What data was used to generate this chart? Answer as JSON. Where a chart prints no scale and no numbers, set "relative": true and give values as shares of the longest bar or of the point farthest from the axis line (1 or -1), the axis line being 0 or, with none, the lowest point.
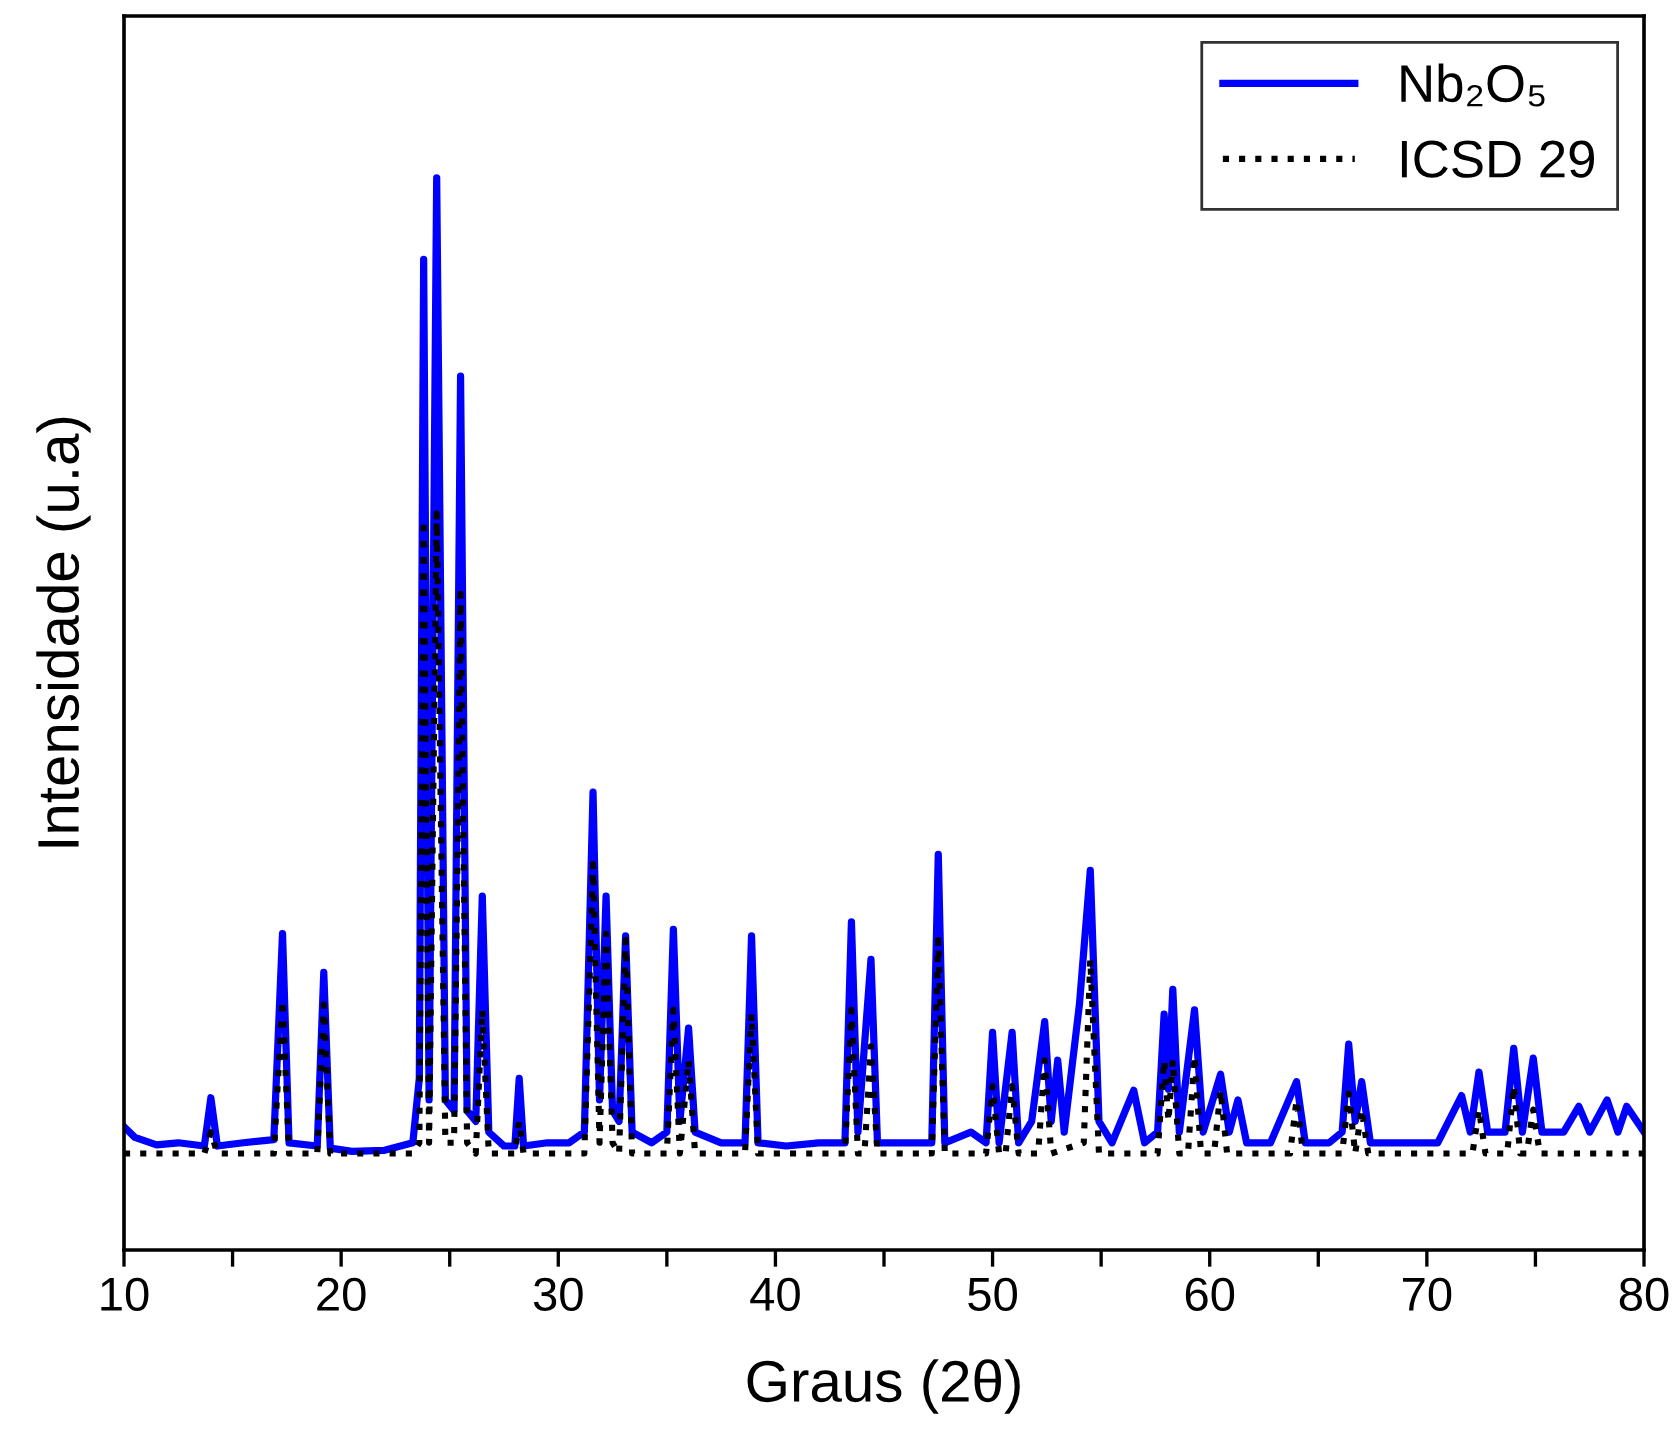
{
  "chart_data": {
    "type": "line",
    "relative": true,
    "xlabel": "Graus (2θ)",
    "ylabel": "Intensidade (u.a)",
    "xlim": [
      10,
      80
    ],
    "xticks": [
      10,
      {
        "value": 15,
        "label": null
      },
      20,
      {
        "value": 25,
        "label": null
      },
      30,
      {
        "value": 35,
        "label": null
      },
      40,
      {
        "value": 45,
        "label": null
      },
      50,
      {
        "value": 55,
        "label": null
      },
      60,
      {
        "value": 65,
        "label": null
      },
      70,
      {
        "value": 75,
        "label": null
      },
      80
    ],
    "tick_labels": "x",
    "legend": "top right",
    "grid": false,
    "series": [
      {
        "name": "Nb₂O₅",
        "color": "#0000ff",
        "line_style": "solid",
        "x": [
          10,
          10.5,
          11.5,
          12.5,
          13.7,
          14.0,
          14.3,
          15.5,
          16.9,
          17.3,
          17.6,
          18.9,
          19.2,
          19.5,
          20.5,
          22,
          23.3,
          23.6,
          23.8,
          24.05,
          24.4,
          24.8,
          25.2,
          25.5,
          25.8,
          26.2,
          26.5,
          26.8,
          27.5,
          28.0,
          28.2,
          28.4,
          29.5,
          30.5,
          31.2,
          31.6,
          31.9,
          32.2,
          32.5,
          32.8,
          33.1,
          33.4,
          34.3,
          35.0,
          35.3,
          35.6,
          36.0,
          36.3,
          37.5,
          38.6,
          38.9,
          39.2,
          40.5,
          42,
          43.2,
          43.5,
          43.8,
          44.4,
          44.7,
          46,
          47.2,
          47.5,
          47.8,
          49,
          49.7,
          50.0,
          50.3,
          50.9,
          51.2,
          51.8,
          52.4,
          52.7,
          53.0,
          53.3,
          54.0,
          54.5,
          54.9,
          55.5,
          56.5,
          57.0,
          57.6,
          57.9,
          58.1,
          58.3,
          58.6,
          59.3,
          59.7,
          60.5,
          60.9,
          61.3,
          61.7,
          62.8,
          64.0,
          64.4,
          65.5,
          66.1,
          66.4,
          66.7,
          67.0,
          67.4,
          69,
          70.5,
          71.6,
          72.0,
          72.4,
          72.8,
          73.6,
          74.0,
          74.4,
          74.9,
          75.3,
          76.3,
          77.0,
          77.5,
          78.3,
          78.8,
          79.2,
          80
        ],
        "values": [
          0.115,
          0.105,
          0.098,
          0.1,
          0.097,
          0.142,
          0.097,
          0.1,
          0.103,
          0.295,
          0.1,
          0.097,
          0.259,
          0.095,
          0.092,
          0.093,
          0.1,
          0.16,
          0.924,
          0.14,
          1.0,
          0.14,
          0.13,
          0.815,
          0.13,
          0.12,
          0.33,
          0.11,
          0.097,
          0.097,
          0.16,
          0.097,
          0.1,
          0.1,
          0.11,
          0.427,
          0.14,
          0.33,
          0.13,
          0.12,
          0.293,
          0.11,
          0.1,
          0.11,
          0.299,
          0.12,
          0.207,
          0.11,
          0.1,
          0.1,
          0.293,
          0.1,
          0.097,
          0.1,
          0.1,
          0.306,
          0.11,
          0.271,
          0.1,
          0.1,
          0.1,
          0.369,
          0.1,
          0.11,
          0.1,
          0.203,
          0.1,
          0.203,
          0.1,
          0.12,
          0.213,
          0.12,
          0.177,
          0.11,
          0.229,
          0.354,
          0.12,
          0.1,
          0.149,
          0.1,
          0.11,
          0.22,
          0.15,
          0.243,
          0.11,
          0.224,
          0.11,
          0.164,
          0.11,
          0.14,
          0.1,
          0.1,
          0.157,
          0.1,
          0.1,
          0.11,
          0.192,
          0.12,
          0.157,
          0.1,
          0.1,
          0.1,
          0.144,
          0.11,
          0.166,
          0.11,
          0.11,
          0.188,
          0.11,
          0.179,
          0.11,
          0.11,
          0.134,
          0.11,
          0.14,
          0.11,
          0.134,
          0.11
        ]
      },
      {
        "name": "ICSD 29",
        "color": "#000000",
        "line_style": "dotted",
        "x": [
          10,
          13.7,
          14.0,
          14.3,
          16.9,
          17.3,
          17.6,
          18.9,
          19.2,
          19.5,
          23.3,
          23.6,
          23.8,
          24.05,
          24.4,
          24.8,
          25.2,
          25.5,
          25.8,
          26.2,
          26.5,
          26.8,
          28.0,
          28.2,
          28.4,
          31.2,
          31.6,
          31.9,
          32.2,
          32.5,
          32.8,
          33.1,
          33.4,
          35.0,
          35.3,
          35.6,
          36.0,
          36.3,
          38.6,
          38.9,
          39.2,
          43.2,
          43.5,
          43.8,
          44.1,
          44.4,
          44.7,
          47.2,
          47.5,
          47.8,
          49.7,
          50.0,
          50.3,
          50.6,
          50.9,
          51.2,
          52.1,
          52.4,
          52.7,
          54.2,
          54.5,
          54.9,
          57.6,
          57.9,
          58.1,
          58.3,
          58.6,
          59.0,
          59.3,
          59.6,
          60.2,
          60.5,
          60.8,
          63.7,
          64.0,
          64.3,
          66.1,
          66.4,
          66.7,
          67.0,
          67.3,
          72.1,
          72.4,
          72.7,
          73.7,
          74.0,
          74.3,
          74.6,
          74.9,
          75.2,
          80
        ],
        "values": [
          0.09,
          0.09,
          0.11,
          0.09,
          0.09,
          0.233,
          0.09,
          0.09,
          0.229,
          0.09,
          0.09,
          0.1,
          0.681,
          0.1,
          0.687,
          0.1,
          0.1,
          0.612,
          0.1,
          0.09,
          0.224,
          0.09,
          0.09,
          0.12,
          0.09,
          0.09,
          0.36,
          0.1,
          0.295,
          0.1,
          0.09,
          0.289,
          0.09,
          0.09,
          0.224,
          0.09,
          0.177,
          0.09,
          0.09,
          0.22,
          0.09,
          0.09,
          0.224,
          0.09,
          0.09,
          0.19,
          0.09,
          0.09,
          0.289,
          0.09,
          0.09,
          0.153,
          0.09,
          0.09,
          0.153,
          0.09,
          0.09,
          0.177,
          0.09,
          0.1,
          0.271,
          0.09,
          0.09,
          0.177,
          0.12,
          0.177,
          0.09,
          0.09,
          0.181,
          0.09,
          0.09,
          0.149,
          0.09,
          0.09,
          0.14,
          0.09,
          0.09,
          0.146,
          0.09,
          0.131,
          0.09,
          0.09,
          0.131,
          0.09,
          0.09,
          0.153,
          0.09,
          0.09,
          0.131,
          0.09,
          0.09
        ]
      }
    ]
  }
}
